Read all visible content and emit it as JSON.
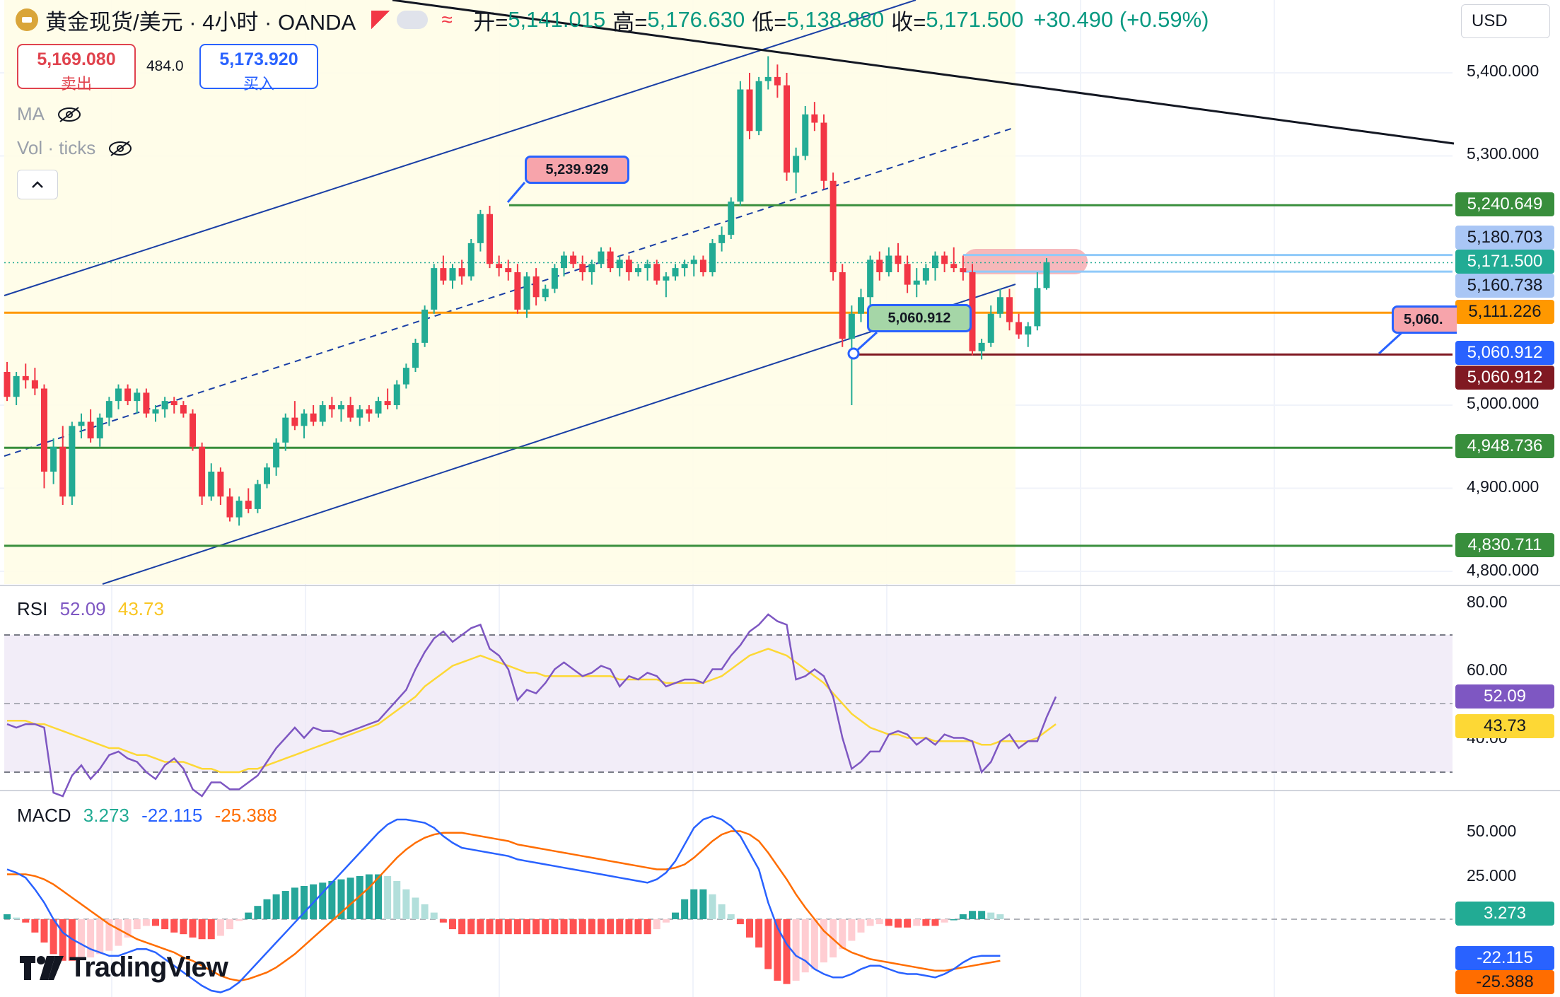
{
  "header": {
    "symbol_title": "黄金现货/美元 · 4小时 · OANDA",
    "ohlc": {
      "open_label": "开=",
      "open": "5,141.015",
      "high_label": "高=",
      "high": "5,176.630",
      "low_label": "低=",
      "low": "5,138.880",
      "close_label": "收=",
      "close": "5,171.500",
      "change": "+30.490 (+0.59%)"
    },
    "currency": "USD"
  },
  "trade": {
    "sell_price": "5,169.080",
    "sell_label": "卖出",
    "spread": "484.0",
    "buy_price": "5,173.920",
    "buy_label": "买入"
  },
  "indicators": {
    "ma_label": "MA",
    "vol_label": "Vol · ticks"
  },
  "price_axis": [
    "5,400.000",
    "5,300.000",
    "5,000.000",
    "4,900.000",
    "4,800.000"
  ],
  "price_tags": [
    {
      "text": "5,240.649",
      "bg": "#388e3c",
      "fg": "#ffffff"
    },
    {
      "text": "5,180.703",
      "bg": "#a9c6f5",
      "fg": "#131722"
    },
    {
      "text": "5,171.500",
      "bg": "#22ab94",
      "fg": "#ffffff"
    },
    {
      "text": "5,160.738",
      "bg": "#a9c6f5",
      "fg": "#131722"
    },
    {
      "text": "5,111.226",
      "bg": "#ff9800",
      "fg": "#131722"
    },
    {
      "text": "5,060.912",
      "bg": "#2962ff",
      "fg": "#ffffff"
    },
    {
      "text": "5,060.912",
      "bg": "#801922",
      "fg": "#ffffff"
    },
    {
      "text": "4,948.736",
      "bg": "#388e3c",
      "fg": "#ffffff"
    },
    {
      "text": "4,830.711",
      "bg": "#388e3c",
      "fg": "#ffffff"
    }
  ],
  "notes": {
    "peak_note": "5,239.929",
    "low_note": "5,060.912",
    "right_note": "5,060."
  },
  "rsi": {
    "label": "RSI",
    "value": "52.09",
    "ma_value": "43.73",
    "axis": [
      "80.00",
      "60.00",
      "40.00"
    ]
  },
  "macd": {
    "label": "MACD",
    "hist": "3.273",
    "macd_line": "-22.115",
    "signal": "-25.388",
    "axis": [
      "50.000",
      "25.000"
    ]
  },
  "brand": "TradingView",
  "colors": {
    "up": "#22ab94",
    "down": "#f23645",
    "rsi_line": "#7e57c2",
    "rsi_ma": "#fdd835",
    "macd_line": "#2962ff",
    "signal_line": "#ff6d00"
  },
  "chart_data": {
    "type": "candlestick",
    "ohlc_sample": [
      [
        5040,
        5052,
        5005,
        5010
      ],
      [
        5010,
        5040,
        5000,
        5035
      ],
      [
        5035,
        5050,
        5020,
        5030
      ],
      [
        5030,
        5045,
        5012,
        5020
      ],
      [
        5020,
        5025,
        4900,
        4920
      ],
      [
        4920,
        4960,
        4905,
        4950
      ],
      [
        4950,
        4975,
        4880,
        4890
      ],
      [
        4890,
        4980,
        4880,
        4975
      ],
      [
        4975,
        4990,
        4960,
        4980
      ],
      [
        4980,
        4995,
        4955,
        4960
      ],
      [
        4960,
        4990,
        4950,
        4985
      ],
      [
        4985,
        5010,
        4975,
        5005
      ],
      [
        5005,
        5025,
        4995,
        5020
      ],
      [
        5020,
        5025,
        5000,
        5005
      ],
      [
        5005,
        5020,
        4990,
        5015
      ],
      [
        5015,
        5020,
        4985,
        4990
      ],
      [
        4990,
        5000,
        4980,
        4995
      ],
      [
        4995,
        5010,
        4985,
        5005
      ],
      [
        5005,
        5010,
        4990,
        5000
      ],
      [
        5000,
        5005,
        4985,
        4990
      ],
      [
        4990,
        4995,
        4945,
        4950
      ],
      [
        4950,
        4955,
        4880,
        4890
      ],
      [
        4890,
        4930,
        4885,
        4920
      ],
      [
        4920,
        4925,
        4880,
        4890
      ],
      [
        4890,
        4900,
        4860,
        4865
      ],
      [
        4865,
        4890,
        4855,
        4885
      ],
      [
        4885,
        4900,
        4870,
        4875
      ],
      [
        4875,
        4910,
        4870,
        4905
      ],
      [
        4905,
        4930,
        4900,
        4925
      ],
      [
        4925,
        4960,
        4915,
        4955
      ],
      [
        4955,
        4990,
        4945,
        4985
      ],
      [
        4985,
        5005,
        4970,
        4975
      ],
      [
        4975,
        4995,
        4960,
        4990
      ],
      [
        4990,
        5000,
        4975,
        4980
      ],
      [
        4980,
        5005,
        4975,
        5000
      ],
      [
        5000,
        5010,
        4985,
        4995
      ],
      [
        4995,
        5005,
        4980,
        5000
      ],
      [
        5000,
        5010,
        4980,
        4985
      ],
      [
        4985,
        5000,
        4975,
        4995
      ],
      [
        4995,
        5000,
        4980,
        4990
      ],
      [
        4990,
        5010,
        4985,
        5005
      ],
      [
        5005,
        5020,
        4995,
        5000
      ],
      [
        5000,
        5030,
        4995,
        5025
      ],
      [
        5025,
        5050,
        5020,
        5045
      ],
      [
        5045,
        5080,
        5040,
        5075
      ],
      [
        5075,
        5120,
        5070,
        5115
      ],
      [
        5115,
        5170,
        5110,
        5165
      ],
      [
        5165,
        5180,
        5145,
        5150
      ],
      [
        5150,
        5170,
        5140,
        5165
      ],
      [
        5165,
        5175,
        5145,
        5155
      ],
      [
        5155,
        5200,
        5150,
        5195
      ],
      [
        5195,
        5235,
        5185,
        5230
      ],
      [
        5230,
        5240,
        5165,
        5170
      ],
      [
        5170,
        5180,
        5155,
        5165
      ],
      [
        5165,
        5175,
        5150,
        5160
      ],
      [
        5160,
        5170,
        5110,
        5115
      ],
      [
        5115,
        5160,
        5105,
        5155
      ],
      [
        5155,
        5165,
        5120,
        5130
      ],
      [
        5130,
        5145,
        5125,
        5140
      ],
      [
        5140,
        5170,
        5135,
        5165
      ],
      [
        5165,
        5185,
        5155,
        5180
      ],
      [
        5180,
        5185,
        5165,
        5170
      ],
      [
        5170,
        5180,
        5150,
        5160
      ],
      [
        5160,
        5175,
        5145,
        5170
      ],
      [
        5170,
        5190,
        5165,
        5185
      ],
      [
        5185,
        5190,
        5160,
        5165
      ],
      [
        5165,
        5180,
        5155,
        5175
      ],
      [
        5175,
        5180,
        5150,
        5160
      ],
      [
        5160,
        5170,
        5155,
        5165
      ],
      [
        5165,
        5175,
        5150,
        5170
      ],
      [
        5170,
        5175,
        5145,
        5150
      ],
      [
        5150,
        5160,
        5130,
        5155
      ],
      [
        5155,
        5170,
        5150,
        5165
      ],
      [
        5165,
        5175,
        5155,
        5170
      ],
      [
        5170,
        5180,
        5155,
        5175
      ],
      [
        5175,
        5180,
        5155,
        5160
      ],
      [
        5160,
        5200,
        5155,
        5195
      ],
      [
        5195,
        5215,
        5185,
        5205
      ],
      [
        5205,
        5250,
        5200,
        5245
      ],
      [
        5245,
        5390,
        5240,
        5380
      ],
      [
        5380,
        5400,
        5320,
        5330
      ],
      [
        5330,
        5395,
        5325,
        5390
      ],
      [
        5390,
        5420,
        5380,
        5395
      ],
      [
        5395,
        5410,
        5370,
        5385
      ],
      [
        5385,
        5400,
        5270,
        5280
      ],
      [
        5280,
        5310,
        5255,
        5300
      ],
      [
        5300,
        5360,
        5295,
        5350
      ],
      [
        5350,
        5365,
        5330,
        5340
      ],
      [
        5340,
        5350,
        5260,
        5270
      ],
      [
        5270,
        5280,
        5150,
        5160
      ],
      [
        5160,
        5170,
        5070,
        5080
      ],
      [
        5080,
        5120,
        5000,
        5110
      ],
      [
        5110,
        5140,
        5100,
        5130
      ],
      [
        5130,
        5180,
        5120,
        5175
      ],
      [
        5175,
        5185,
        5150,
        5160
      ],
      [
        5160,
        5190,
        5155,
        5180
      ],
      [
        5180,
        5195,
        5160,
        5170
      ],
      [
        5170,
        5180,
        5135,
        5145
      ],
      [
        5145,
        5165,
        5130,
        5150
      ],
      [
        5150,
        5170,
        5145,
        5165
      ],
      [
        5165,
        5185,
        5150,
        5180
      ],
      [
        5180,
        5185,
        5160,
        5170
      ],
      [
        5170,
        5190,
        5160,
        5165
      ],
      [
        5165,
        5180,
        5150,
        5160
      ],
      [
        5160,
        5170,
        5060,
        5065
      ],
      [
        5065,
        5080,
        5055,
        5075
      ],
      [
        5075,
        5120,
        5070,
        5110
      ],
      [
        5110,
        5140,
        5105,
        5130
      ],
      [
        5130,
        5140,
        5090,
        5100
      ],
      [
        5100,
        5110,
        5080,
        5085
      ],
      [
        5085,
        5100,
        5070,
        5095
      ],
      [
        5095,
        5160,
        5090,
        5141
      ],
      [
        5141,
        5177,
        5139,
        5172
      ]
    ],
    "horizontal_levels": [
      5240.649,
      5180.703,
      5171.5,
      5160.738,
      5111.226,
      5060.912,
      4948.736,
      4830.711
    ],
    "rsi": [
      44,
      43,
      44,
      44,
      43,
      24,
      23,
      29,
      32,
      28,
      31,
      35,
      36,
      34,
      33,
      30,
      28,
      32,
      34,
      31,
      25,
      23,
      27,
      27,
      25,
      25,
      27,
      29,
      33,
      37,
      40,
      43,
      40,
      43,
      42,
      42,
      41,
      42,
      43,
      44,
      45,
      48,
      51,
      54,
      60,
      65,
      69,
      71,
      68,
      70,
      72,
      73,
      66,
      64,
      60,
      51,
      54,
      53,
      56,
      60,
      62,
      60,
      58,
      59,
      61,
      60,
      55,
      58,
      57,
      59,
      58,
      55,
      56,
      57,
      57,
      56,
      60,
      60,
      64,
      67,
      71,
      73,
      76,
      74,
      73,
      57,
      58,
      60,
      58,
      52,
      40,
      31,
      33,
      36,
      36,
      41,
      42,
      41,
      38,
      40,
      38,
      41,
      40,
      40,
      39,
      30,
      33,
      39,
      41,
      37,
      39,
      39,
      46,
      52
    ],
    "rsi_ma": [
      45,
      45,
      45,
      44,
      44,
      43,
      42,
      41,
      40,
      39,
      38,
      37,
      37,
      36,
      35,
      35,
      34,
      33,
      33,
      33,
      32,
      31,
      31,
      30,
      30,
      30,
      31,
      31,
      32,
      33,
      34,
      35,
      36,
      37,
      38,
      39,
      40,
      41,
      42,
      43,
      44,
      46,
      48,
      50,
      52,
      55,
      57,
      59,
      61,
      62,
      63,
      64,
      63,
      62,
      61,
      60,
      59,
      59,
      58,
      58,
      58,
      58,
      58,
      58,
      58,
      58,
      57,
      57,
      57,
      57,
      57,
      56,
      56,
      56,
      56,
      56,
      57,
      58,
      60,
      62,
      64,
      65,
      66,
      65,
      64,
      62,
      60,
      58,
      56,
      53,
      50,
      47,
      45,
      43,
      42,
      41,
      41,
      40,
      40,
      40,
      39,
      39,
      39,
      39,
      39,
      38,
      38,
      39,
      39,
      39,
      39,
      40,
      42,
      44
    ],
    "macd": [
      30,
      28,
      25,
      18,
      10,
      0,
      -8,
      -12,
      -15,
      -18,
      -20,
      -22,
      -22,
      -20,
      -18,
      -18,
      -20,
      -24,
      -28,
      -32,
      -36,
      -40,
      -43,
      -44,
      -42,
      -38,
      -32,
      -26,
      -20,
      -14,
      -8,
      -2,
      4,
      10,
      16,
      22,
      28,
      34,
      40,
      46,
      52,
      57,
      60,
      60,
      59,
      58,
      55,
      50,
      46,
      43,
      42,
      41,
      40,
      39,
      38,
      36,
      35,
      34,
      33,
      32,
      31,
      30,
      29,
      28,
      27,
      26,
      25,
      24,
      23,
      22,
      24,
      28,
      35,
      45,
      55,
      60,
      62,
      60,
      56,
      50,
      40,
      30,
      10,
      -5,
      -15,
      -22,
      -25,
      -30,
      -33,
      -35,
      -35,
      -33,
      -30,
      -28,
      -28,
      -30,
      -32,
      -33,
      -33,
      -34,
      -35,
      -33,
      -30,
      -26,
      -23,
      -22,
      -22,
      -22
    ],
    "signal": [
      27,
      27,
      27,
      26,
      24,
      21,
      17,
      13,
      9,
      5,
      1,
      -3,
      -6,
      -9,
      -12,
      -14,
      -16,
      -18,
      -20,
      -23,
      -25,
      -28,
      -31,
      -34,
      -36,
      -37,
      -36,
      -34,
      -32,
      -29,
      -25,
      -21,
      -16,
      -11,
      -6,
      -1,
      4,
      9,
      14,
      19,
      25,
      31,
      37,
      42,
      46,
      49,
      51,
      52,
      52,
      52,
      51,
      50,
      49,
      48,
      47,
      45,
      44,
      43,
      42,
      41,
      40,
      39,
      38,
      37,
      36,
      35,
      34,
      33,
      32,
      31,
      30,
      30,
      31,
      33,
      37,
      42,
      47,
      51,
      53,
      53,
      51,
      47,
      40,
      32,
      24,
      15,
      7,
      0,
      -7,
      -12,
      -17,
      -20,
      -22,
      -24,
      -25,
      -26,
      -27,
      -28,
      -29,
      -30,
      -31,
      -31,
      -30,
      -29,
      -28,
      -27,
      -26,
      -25
    ]
  }
}
